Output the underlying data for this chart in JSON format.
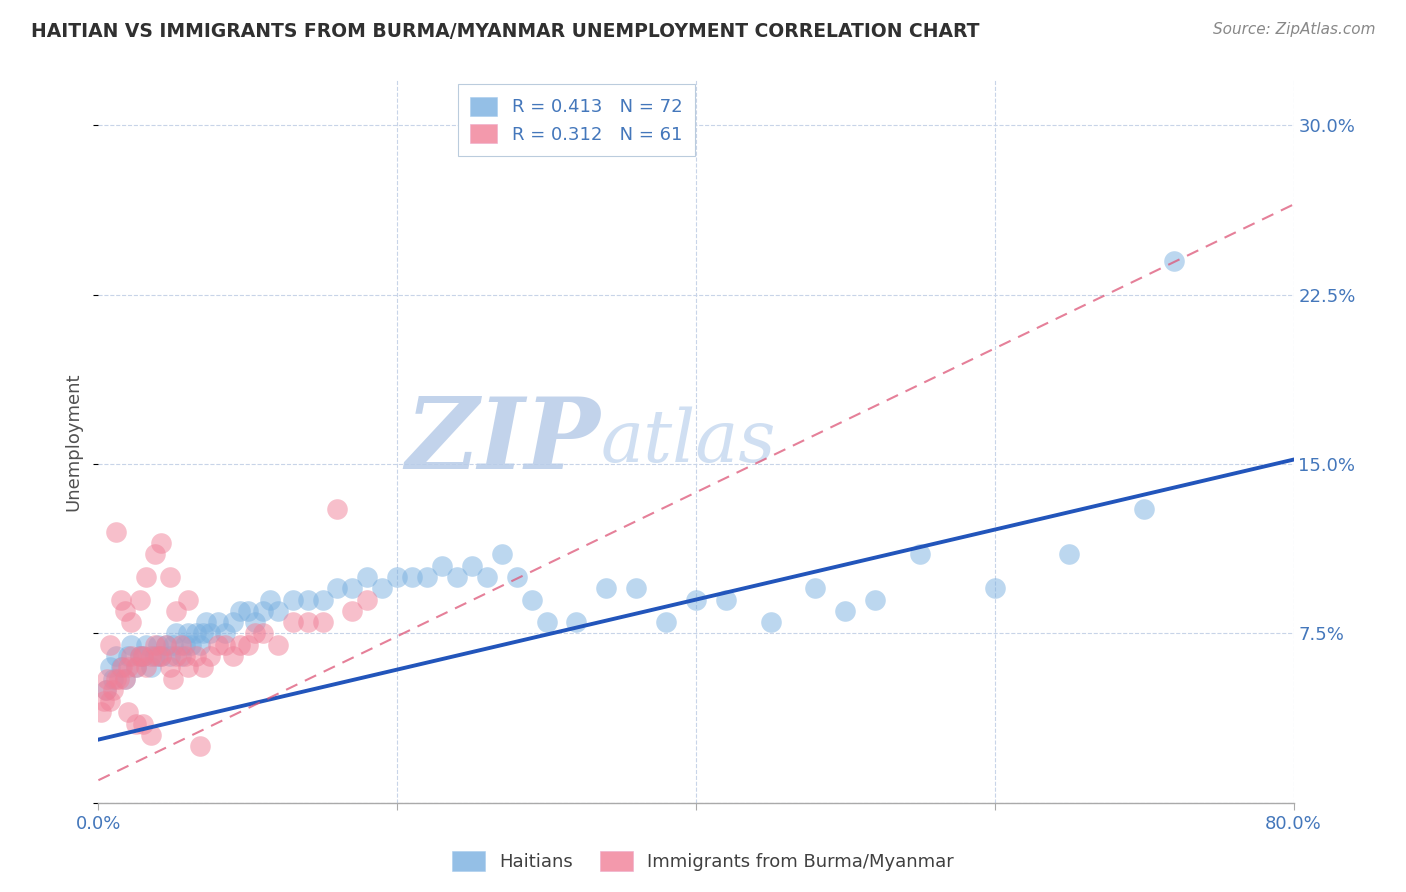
{
  "title": "HAITIAN VS IMMIGRANTS FROM BURMA/MYANMAR UNEMPLOYMENT CORRELATION CHART",
  "source": "Source: ZipAtlas.com",
  "ylabel": "Unemployment",
  "xlim": [
    0.0,
    0.8
  ],
  "ylim": [
    0.0,
    0.32
  ],
  "yticks": [
    0.0,
    0.075,
    0.15,
    0.225,
    0.3
  ],
  "ytick_labels": [
    "",
    "7.5%",
    "15.0%",
    "22.5%",
    "30.0%"
  ],
  "xticks": [
    0.0,
    0.2,
    0.4,
    0.6,
    0.8
  ],
  "xtick_labels": [
    "0.0%",
    "",
    "",
    "",
    "80.0%"
  ],
  "blue_color": "#7ab0e0",
  "pink_color": "#f08098",
  "blue_line_color": "#2255bb",
  "pink_line_color": "#dd5577",
  "watermark_zip": "ZIP",
  "watermark_atlas": "atlas",
  "watermark_color_zip": "#b8cce8",
  "watermark_color_atlas": "#c8daf0",
  "title_color": "#303030",
  "axis_color": "#4477bb",
  "source_color": "#888888",
  "legend_blue_label": "R = 0.413   N = 72",
  "legend_pink_label": "R = 0.312   N = 61",
  "blue_line_y_start": 0.028,
  "blue_line_y_end": 0.152,
  "pink_line_y_start": 0.01,
  "pink_line_y_end": 0.265,
  "blue_scatter_x": [
    0.005,
    0.008,
    0.01,
    0.012,
    0.015,
    0.018,
    0.02,
    0.022,
    0.025,
    0.028,
    0.03,
    0.032,
    0.035,
    0.038,
    0.04,
    0.042,
    0.045,
    0.048,
    0.05,
    0.052,
    0.055,
    0.058,
    0.06,
    0.062,
    0.065,
    0.068,
    0.07,
    0.072,
    0.075,
    0.08,
    0.085,
    0.09,
    0.095,
    0.1,
    0.105,
    0.11,
    0.115,
    0.12,
    0.13,
    0.14,
    0.15,
    0.16,
    0.17,
    0.18,
    0.19,
    0.2,
    0.21,
    0.22,
    0.23,
    0.24,
    0.25,
    0.26,
    0.27,
    0.28,
    0.29,
    0.3,
    0.32,
    0.34,
    0.36,
    0.38,
    0.4,
    0.42,
    0.45,
    0.48,
    0.5,
    0.52,
    0.55,
    0.6,
    0.65,
    0.7,
    0.27,
    0.72
  ],
  "blue_scatter_y": [
    0.05,
    0.06,
    0.055,
    0.065,
    0.06,
    0.055,
    0.065,
    0.07,
    0.06,
    0.065,
    0.065,
    0.07,
    0.06,
    0.065,
    0.07,
    0.065,
    0.07,
    0.065,
    0.07,
    0.075,
    0.065,
    0.07,
    0.075,
    0.07,
    0.075,
    0.07,
    0.075,
    0.08,
    0.075,
    0.08,
    0.075,
    0.08,
    0.085,
    0.085,
    0.08,
    0.085,
    0.09,
    0.085,
    0.09,
    0.09,
    0.09,
    0.095,
    0.095,
    0.1,
    0.095,
    0.1,
    0.1,
    0.1,
    0.105,
    0.1,
    0.105,
    0.1,
    0.11,
    0.1,
    0.09,
    0.08,
    0.08,
    0.095,
    0.095,
    0.08,
    0.09,
    0.09,
    0.08,
    0.095,
    0.085,
    0.09,
    0.11,
    0.095,
    0.11,
    0.13,
    0.295,
    0.24
  ],
  "pink_scatter_x": [
    0.002,
    0.004,
    0.005,
    0.006,
    0.008,
    0.01,
    0.012,
    0.014,
    0.016,
    0.018,
    0.02,
    0.022,
    0.025,
    0.028,
    0.03,
    0.032,
    0.035,
    0.038,
    0.04,
    0.042,
    0.045,
    0.048,
    0.05,
    0.052,
    0.055,
    0.058,
    0.06,
    0.065,
    0.07,
    0.075,
    0.08,
    0.085,
    0.09,
    0.095,
    0.1,
    0.105,
    0.11,
    0.12,
    0.13,
    0.14,
    0.15,
    0.16,
    0.17,
    0.18,
    0.02,
    0.025,
    0.03,
    0.035,
    0.008,
    0.012,
    0.015,
    0.018,
    0.022,
    0.028,
    0.032,
    0.038,
    0.042,
    0.048,
    0.052,
    0.06,
    0.068
  ],
  "pink_scatter_y": [
    0.04,
    0.045,
    0.05,
    0.055,
    0.045,
    0.05,
    0.055,
    0.055,
    0.06,
    0.055,
    0.06,
    0.065,
    0.06,
    0.065,
    0.065,
    0.06,
    0.065,
    0.07,
    0.065,
    0.065,
    0.07,
    0.06,
    0.055,
    0.065,
    0.07,
    0.065,
    0.06,
    0.065,
    0.06,
    0.065,
    0.07,
    0.07,
    0.065,
    0.07,
    0.07,
    0.075,
    0.075,
    0.07,
    0.08,
    0.08,
    0.08,
    0.13,
    0.085,
    0.09,
    0.04,
    0.035,
    0.035,
    0.03,
    0.07,
    0.12,
    0.09,
    0.085,
    0.08,
    0.09,
    0.1,
    0.11,
    0.115,
    0.1,
    0.085,
    0.09,
    0.025
  ]
}
